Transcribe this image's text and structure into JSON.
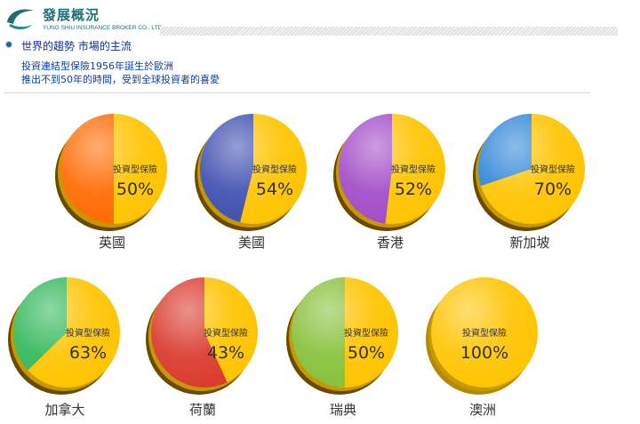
{
  "header": {
    "brand_title": "發展概況",
    "brand_subtitle": "YUNG SHIU INSURANCE BROKER CO., LTD."
  },
  "section": {
    "title": "世界的趨勢  市場的主流",
    "intro_line1": "投資連結型保險1956年誕生於歐洲",
    "intro_line2": "推出不到50年的時間，受到全球投資者的喜愛"
  },
  "colors": {
    "accent": "#FFC400",
    "brand": "#1F6E74"
  },
  "chart_data": {
    "type": "pie",
    "slice_label": "投資型保險",
    "charts": [
      {
        "category": "英國",
        "value": 50,
        "value_label": "50%",
        "other_color": "#FF6A00"
      },
      {
        "category": "美國",
        "value": 54,
        "value_label": "54%",
        "other_color": "#3F4FB0"
      },
      {
        "category": "香港",
        "value": 52,
        "value_label": "52%",
        "other_color": "#A24BC8"
      },
      {
        "category": "新加坡",
        "value": 70,
        "value_label": "70%",
        "other_color": "#2F86D8"
      },
      {
        "category": "加拿大",
        "value": 63,
        "value_label": "63%",
        "other_color": "#32B85A"
      },
      {
        "category": "荷蘭",
        "value": 43,
        "value_label": "43%",
        "other_color": "#DA3A2C"
      },
      {
        "category": "瑞典",
        "value": 50,
        "value_label": "50%",
        "other_color": "#86C13A"
      },
      {
        "category": "澳洲",
        "value": 100,
        "value_label": "100%",
        "other_color": "#FFC400"
      }
    ]
  }
}
